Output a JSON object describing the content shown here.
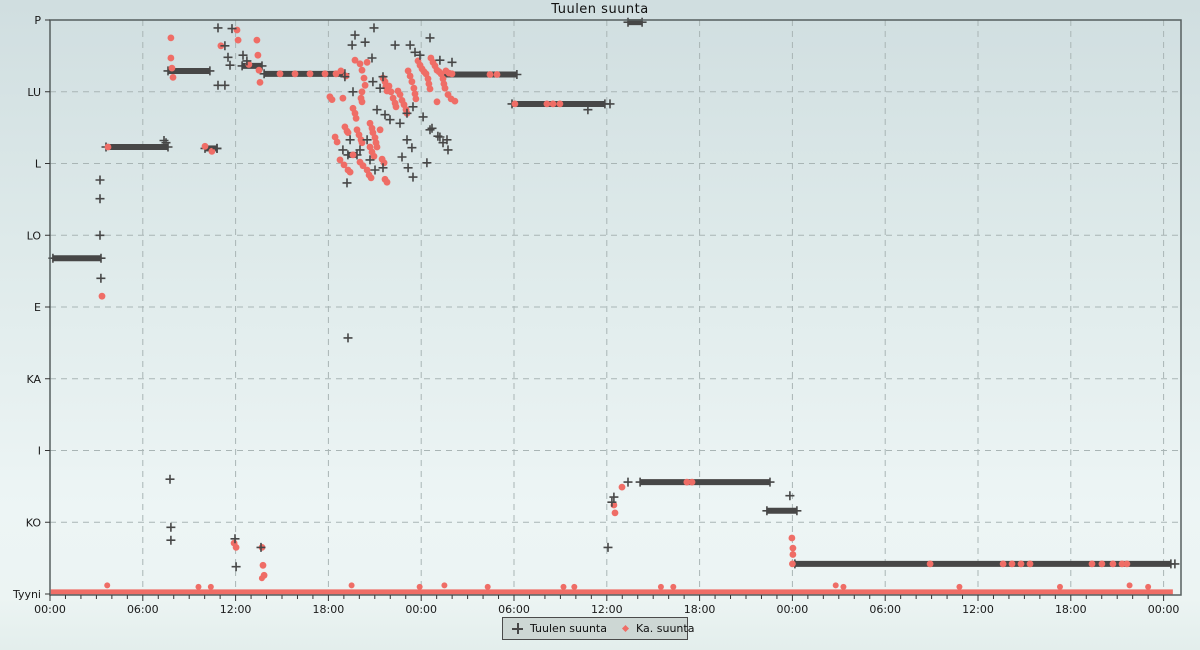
{
  "title": "Tuulen suunta",
  "legend": {
    "series1_label": "Tuulen suunta",
    "series2_label": "Ka. suunta"
  },
  "colors": {
    "plus_marker": "#474747",
    "dot_marker": "#ef6d66",
    "grid": "#a9b5b5",
    "axis": "#565f5f",
    "tick": "#333333",
    "label_text": "#1a1a1a",
    "legend_bg": "#cdd7d4"
  },
  "chart_data": {
    "type": "scatter",
    "title": "Tuulen suunta",
    "x_axis": {
      "unit": "time_of_day",
      "total_hours": 72,
      "major_tick_hours": 6,
      "minor_tick_hours": 1,
      "labels": [
        "00:00",
        "06:00",
        "12:00",
        "18:00",
        "00:00",
        "06:00",
        "12:00",
        "18:00",
        "00:00",
        "06:00",
        "12:00",
        "18:00",
        "00:00"
      ]
    },
    "y_axis": {
      "labels_top_to_bottom": [
        "P",
        "LU",
        "L",
        "LO",
        "E",
        "KA",
        "I",
        "KO",
        "Tyyni"
      ],
      "values_top_to_bottom": [
        8,
        7,
        6,
        5,
        4,
        3,
        2,
        1,
        0
      ],
      "range": [
        0,
        8
      ],
      "grid_dashed": true
    },
    "layout": {
      "plot_left": 50,
      "plot_top": 20,
      "plot_right": 1181,
      "plot_bottom": 595,
      "legend_position": "bottom-center"
    },
    "series": [
      {
        "name": "Tuulen suunta",
        "marker": "plus",
        "color": "#474747",
        "segments": [
          [
            0.19,
            3.3,
            4.68
          ],
          [
            3.62,
            7.63,
            6.23
          ],
          [
            7.63,
            10.34,
            7.29
          ],
          [
            10.02,
            10.8,
            6.21
          ],
          [
            12.42,
            13.71,
            7.36
          ],
          [
            13.84,
            19.07,
            7.25
          ],
          [
            19.26,
            19.85,
            6.12
          ],
          [
            25.54,
            30.19,
            7.24
          ],
          [
            29.87,
            35.88,
            6.83
          ],
          [
            37.37,
            38.28,
            7.97
          ],
          [
            38.15,
            46.55,
            1.56
          ],
          [
            46.35,
            48.29,
            1.16
          ],
          [
            48.16,
            72.47,
            0.42
          ]
        ],
        "points": [
          [
            3.23,
            5.77
          ],
          [
            3.23,
            5.51
          ],
          [
            3.23,
            5.0
          ],
          [
            3.29,
            4.4
          ],
          [
            7.37,
            6.32
          ],
          [
            7.5,
            6.29
          ],
          [
            7.76,
            1.6
          ],
          [
            7.82,
            0.93
          ],
          [
            7.82,
            0.75
          ],
          [
            10.8,
            6.21
          ],
          [
            10.86,
            7.09
          ],
          [
            11.31,
            7.09
          ],
          [
            10.86,
            7.89
          ],
          [
            11.77,
            7.88
          ],
          [
            11.31,
            7.64
          ],
          [
            11.51,
            7.48
          ],
          [
            11.64,
            7.37
          ],
          [
            12.48,
            7.51
          ],
          [
            12.73,
            7.43
          ],
          [
            11.96,
            0.77
          ],
          [
            12.03,
            0.38
          ],
          [
            13.64,
            0.65
          ],
          [
            19.27,
            3.57
          ],
          [
            19.2,
            5.73
          ],
          [
            19.07,
            7.21
          ],
          [
            19.4,
            6.33
          ],
          [
            18.94,
            6.19
          ],
          [
            19.53,
            7.65
          ],
          [
            19.59,
            7.0
          ],
          [
            19.72,
            7.79
          ],
          [
            20.04,
            6.19
          ],
          [
            20.37,
            7.69
          ],
          [
            20.5,
            6.33
          ],
          [
            20.69,
            6.05
          ],
          [
            20.82,
            7.47
          ],
          [
            20.88,
            7.14
          ],
          [
            20.95,
            7.89
          ],
          [
            21.01,
            5.91
          ],
          [
            21.14,
            6.75
          ],
          [
            21.34,
            7.05
          ],
          [
            21.53,
            7.21
          ],
          [
            21.53,
            5.94
          ],
          [
            21.66,
            6.68
          ],
          [
            21.98,
            6.61
          ],
          [
            22.31,
            7.65
          ],
          [
            22.63,
            6.56
          ],
          [
            22.76,
            6.09
          ],
          [
            23.08,
            6.7
          ],
          [
            23.08,
            6.33
          ],
          [
            23.15,
            5.94
          ],
          [
            23.28,
            7.65
          ],
          [
            23.4,
            6.22
          ],
          [
            23.47,
            6.79
          ],
          [
            23.47,
            5.81
          ],
          [
            23.6,
            7.55
          ],
          [
            23.92,
            7.51
          ],
          [
            24.12,
            6.65
          ],
          [
            24.37,
            6.01
          ],
          [
            24.57,
            7.75
          ],
          [
            24.57,
            6.47
          ],
          [
            24.7,
            6.49
          ],
          [
            25.08,
            6.38
          ],
          [
            25.21,
            7.44
          ],
          [
            25.21,
            6.37
          ],
          [
            25.41,
            6.29
          ],
          [
            25.67,
            6.33
          ],
          [
            25.73,
            6.19
          ],
          [
            25.99,
            7.41
          ],
          [
            34.78,
            6.75
          ],
          [
            36.21,
            6.83
          ],
          [
            36.08,
            0.65
          ],
          [
            36.33,
            1.28
          ],
          [
            36.46,
            1.35
          ],
          [
            37.37,
            1.56
          ],
          [
            47.84,
            1.37
          ],
          [
            72.73,
            0.42
          ]
        ]
      },
      {
        "name": "Ka. suunta",
        "marker": "dot",
        "color": "#ef6d66",
        "calm_band": {
          "t_start": 0.05,
          "t_end": 72.6,
          "d": 0.03,
          "thickness_px": 5
        },
        "band_bumps": [
          [
            3.7,
            0.12
          ],
          [
            9.6,
            0.1
          ],
          [
            10.4,
            0.1
          ],
          [
            13.7,
            0.22
          ],
          [
            19.5,
            0.12
          ],
          [
            23.9,
            0.1
          ],
          [
            25.5,
            0.12
          ],
          [
            28.3,
            0.1
          ],
          [
            33.2,
            0.1
          ],
          [
            33.9,
            0.1
          ],
          [
            39.5,
            0.1
          ],
          [
            40.3,
            0.1
          ],
          [
            50.8,
            0.12
          ],
          [
            51.3,
            0.1
          ],
          [
            58.8,
            0.1
          ],
          [
            65.3,
            0.1
          ],
          [
            69.8,
            0.12
          ],
          [
            71.0,
            0.1
          ]
        ],
        "points": [
          [
            3.75,
            6.23
          ],
          [
            3.36,
            4.15
          ],
          [
            7.82,
            7.75
          ],
          [
            7.82,
            7.47
          ],
          [
            7.88,
            7.33
          ],
          [
            7.95,
            7.2
          ],
          [
            10.02,
            6.24
          ],
          [
            10.47,
            6.17
          ],
          [
            11.05,
            7.64
          ],
          [
            12.09,
            7.86
          ],
          [
            12.16,
            7.72
          ],
          [
            12.86,
            7.38
          ],
          [
            13.38,
            7.72
          ],
          [
            13.44,
            7.51
          ],
          [
            13.51,
            7.3
          ],
          [
            13.58,
            7.13
          ],
          [
            14.87,
            7.25
          ],
          [
            15.84,
            7.25
          ],
          [
            16.81,
            7.25
          ],
          [
            17.78,
            7.25
          ],
          [
            18.49,
            7.25
          ],
          [
            19.59,
            6.12
          ],
          [
            18.1,
            6.93
          ],
          [
            18.23,
            6.89
          ],
          [
            18.43,
            6.37
          ],
          [
            18.56,
            6.3
          ],
          [
            18.75,
            6.05
          ],
          [
            18.81,
            7.29
          ],
          [
            18.94,
            6.91
          ],
          [
            19.01,
            5.98
          ],
          [
            19.07,
            6.51
          ],
          [
            19.14,
            7.22
          ],
          [
            19.2,
            6.45
          ],
          [
            19.27,
            6.43
          ],
          [
            19.27,
            5.91
          ],
          [
            19.4,
            5.88
          ],
          [
            19.59,
            6.77
          ],
          [
            19.72,
            6.7
          ],
          [
            19.72,
            7.44
          ],
          [
            19.79,
            6.63
          ],
          [
            19.85,
            6.47
          ],
          [
            19.98,
            6.4
          ],
          [
            20.04,
            7.39
          ],
          [
            20.04,
            6.02
          ],
          [
            20.11,
            6.91
          ],
          [
            20.11,
            6.33
          ],
          [
            20.17,
            7.3
          ],
          [
            20.17,
            7.0
          ],
          [
            20.17,
            6.86
          ],
          [
            20.17,
            6.29
          ],
          [
            20.24,
            5.97
          ],
          [
            20.3,
            7.19
          ],
          [
            20.37,
            7.09
          ],
          [
            20.5,
            7.41
          ],
          [
            20.5,
            5.91
          ],
          [
            20.63,
            5.84
          ],
          [
            20.69,
            6.56
          ],
          [
            20.69,
            6.23
          ],
          [
            20.76,
            5.8
          ],
          [
            20.82,
            6.49
          ],
          [
            20.82,
            6.16
          ],
          [
            20.88,
            6.43
          ],
          [
            20.95,
            6.1
          ],
          [
            21.01,
            6.36
          ],
          [
            21.08,
            6.29
          ],
          [
            21.14,
            6.23
          ],
          [
            21.34,
            6.47
          ],
          [
            21.47,
            6.06
          ],
          [
            21.53,
            7.19
          ],
          [
            21.6,
            6.01
          ],
          [
            21.66,
            7.14
          ],
          [
            21.66,
            5.78
          ],
          [
            21.72,
            7.07
          ],
          [
            21.79,
            7.01
          ],
          [
            21.79,
            5.74
          ],
          [
            21.92,
            7.08
          ],
          [
            22.05,
            7.0
          ],
          [
            22.18,
            6.91
          ],
          [
            22.31,
            6.84
          ],
          [
            22.37,
            6.79
          ],
          [
            22.5,
            7.01
          ],
          [
            22.63,
            6.96
          ],
          [
            22.76,
            6.88
          ],
          [
            22.89,
            6.82
          ],
          [
            23.02,
            6.75
          ],
          [
            23.08,
            6.7
          ],
          [
            23.15,
            7.29
          ],
          [
            23.28,
            7.22
          ],
          [
            23.4,
            7.14
          ],
          [
            23.53,
            7.05
          ],
          [
            23.6,
            6.97
          ],
          [
            23.66,
            6.9
          ],
          [
            23.79,
            7.43
          ],
          [
            23.92,
            7.37
          ],
          [
            24.05,
            7.32
          ],
          [
            24.18,
            7.28
          ],
          [
            24.31,
            7.25
          ],
          [
            24.44,
            7.18
          ],
          [
            24.5,
            7.11
          ],
          [
            24.57,
            7.04
          ],
          [
            24.63,
            7.47
          ],
          [
            24.76,
            7.41
          ],
          [
            24.89,
            7.36
          ],
          [
            25.02,
            7.3
          ],
          [
            25.02,
            6.86
          ],
          [
            25.15,
            7.28
          ],
          [
            25.28,
            7.25
          ],
          [
            25.41,
            7.18
          ],
          [
            25.47,
            7.11
          ],
          [
            25.54,
            7.05
          ],
          [
            25.6,
            7.29
          ],
          [
            25.73,
            6.96
          ],
          [
            25.8,
            7.26
          ],
          [
            25.93,
            6.9
          ],
          [
            25.99,
            7.25
          ],
          [
            26.18,
            6.87
          ],
          [
            28.45,
            7.24
          ],
          [
            28.9,
            7.24
          ],
          [
            30.06,
            6.83
          ],
          [
            32.13,
            6.83
          ],
          [
            32.52,
            6.83
          ],
          [
            32.97,
            6.83
          ],
          [
            36.46,
            1.24
          ],
          [
            36.53,
            1.13
          ],
          [
            36.98,
            1.49
          ],
          [
            41.18,
            1.56
          ],
          [
            41.51,
            1.56
          ],
          [
            47.97,
            0.78
          ],
          [
            48.03,
            0.64
          ],
          [
            48.03,
            0.55
          ],
          [
            48.0,
            0.42
          ],
          [
            56.9,
            0.42
          ],
          [
            61.62,
            0.42
          ],
          [
            62.2,
            0.42
          ],
          [
            62.78,
            0.42
          ],
          [
            63.36,
            0.42
          ],
          [
            67.37,
            0.42
          ],
          [
            68.01,
            0.42
          ],
          [
            68.72,
            0.42
          ],
          [
            69.31,
            0.42
          ],
          [
            69.63,
            0.42
          ],
          [
            11.9,
            0.71
          ],
          [
            12.03,
            0.65
          ],
          [
            13.71,
            0.65
          ],
          [
            13.77,
            0.4
          ],
          [
            13.84,
            0.26
          ]
        ]
      }
    ]
  }
}
